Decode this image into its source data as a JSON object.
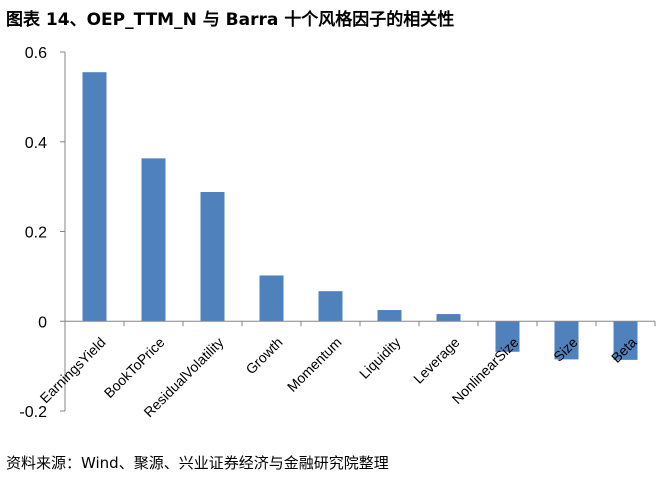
{
  "figure": {
    "title": "图表 14、OEP_TTM_N 与 Barra 十个风格因子的相关性",
    "source": "资料来源：Wind、聚源、兴业证券经济与金融研究院整理"
  },
  "chart_data": {
    "type": "bar",
    "categories": [
      "EarningsYield",
      "BookToPrice",
      "ResidualVolatility",
      "Growth",
      "Momentum",
      "Liquidity",
      "Leverage",
      "NonlinearSize",
      "Size",
      "Beta"
    ],
    "values": [
      0.555,
      0.363,
      0.288,
      0.102,
      0.067,
      0.025,
      0.016,
      -0.068,
      -0.085,
      -0.086
    ],
    "y_ticks": [
      "0.6",
      "0.4",
      "0.2",
      "0",
      "-0.2"
    ],
    "ylim": [
      -0.2,
      0.6
    ],
    "grid": false,
    "bar_color": "#4f81bd",
    "axis_color": "#868686"
  }
}
